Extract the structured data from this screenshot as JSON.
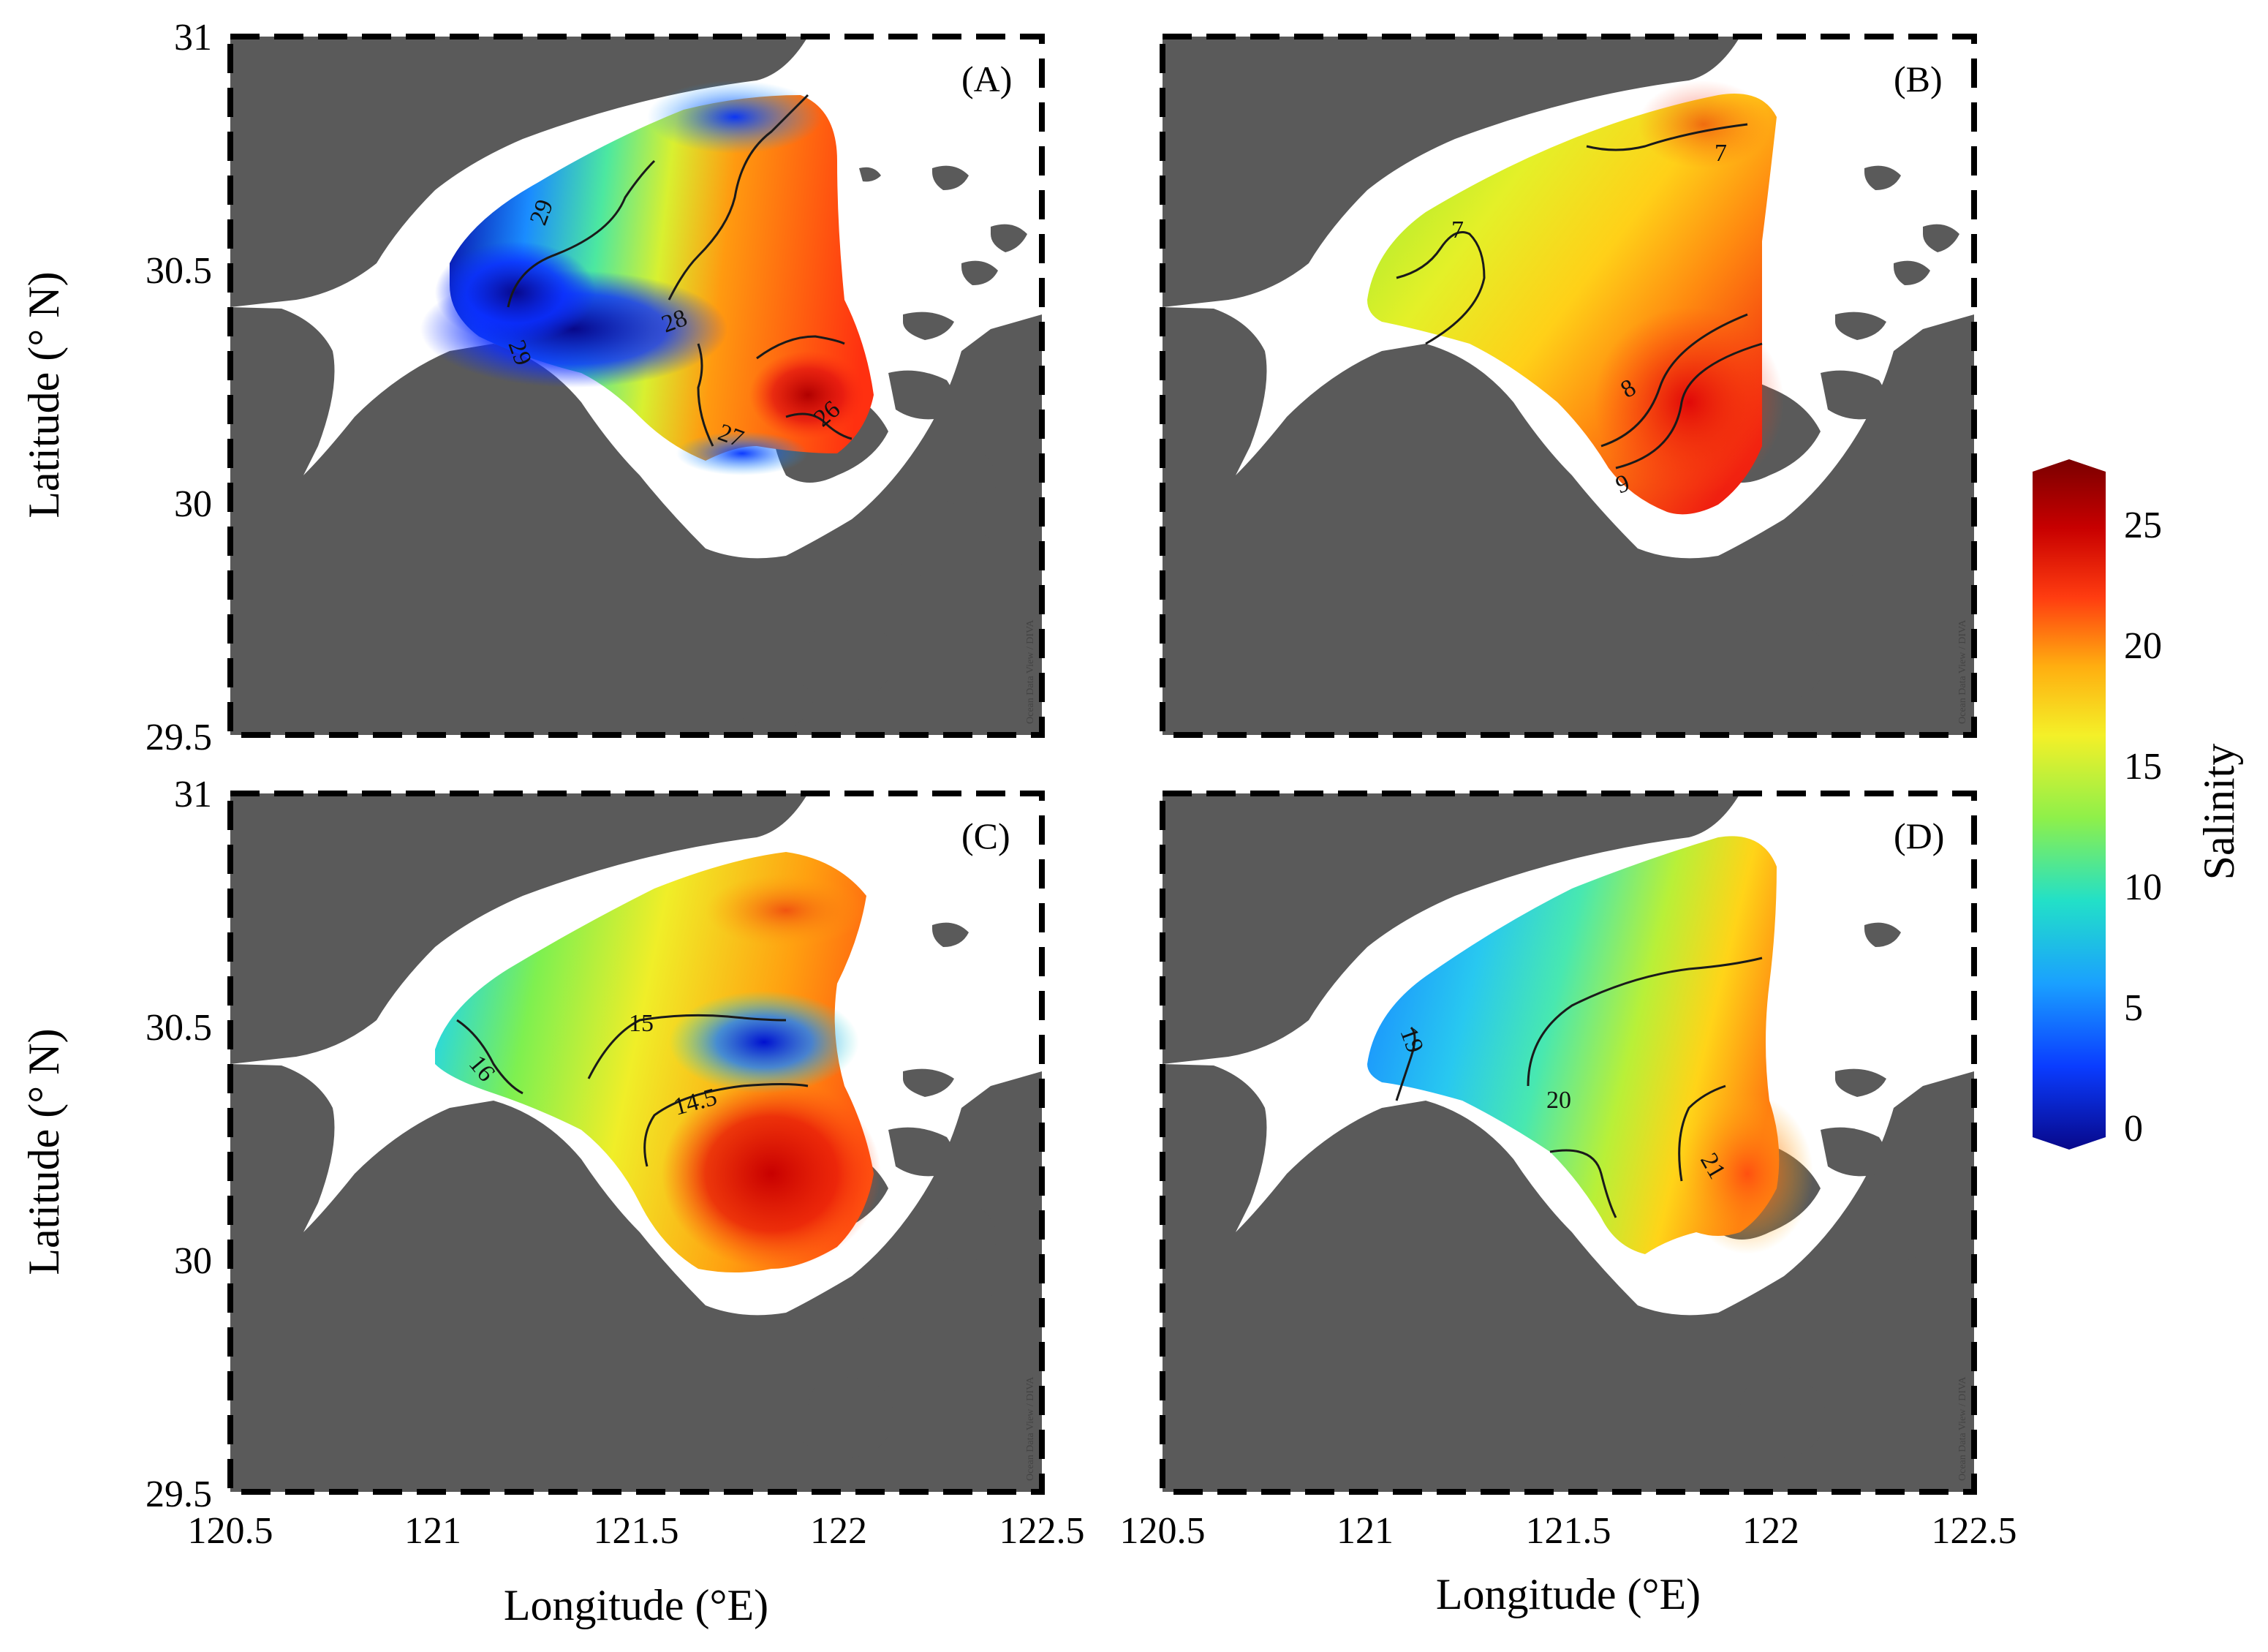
{
  "figure": {
    "x_axis_label": "Longitude (°E)",
    "y_axis_label": "Latitude (°  N)",
    "credit": "Ocean Data View / DIVA",
    "lon_ticks": [
      "120.5",
      "121",
      "121.5",
      "122",
      "122.5"
    ],
    "lat_ticks": [
      "31",
      "30.5",
      "30",
      "29.5"
    ],
    "lon_range": [
      120.5,
      122.5
    ],
    "lat_range": [
      29.5,
      31.0
    ]
  },
  "colors": {
    "land": "#5a5a5a",
    "water": "#ffffff",
    "contour": "#1a1a1a"
  },
  "colorbar": {
    "title": "Salinity",
    "ticks": [
      "0",
      "5",
      "10",
      "15",
      "20",
      "25"
    ],
    "range": [
      0,
      27.5
    ],
    "stops": [
      "#08088a",
      "#0a3cff",
      "#1aa0ff",
      "#22e0c8",
      "#8ef04a",
      "#f4f028",
      "#ffae10",
      "#ff3c10",
      "#c80000",
      "#7a0000"
    ]
  },
  "panels": [
    {
      "id": "A",
      "label": "(A)",
      "contours": [
        {
          "value": 29,
          "label": "29"
        },
        {
          "value": 28,
          "label": "28"
        },
        {
          "value": 27,
          "label": "27"
        },
        {
          "value": 29,
          "label": "29"
        },
        {
          "value": 26,
          "label": "26"
        }
      ]
    },
    {
      "id": "B",
      "label": "(B)",
      "contours": [
        {
          "value": 7,
          "label": "7"
        },
        {
          "value": 7,
          "label": "7"
        },
        {
          "value": 8,
          "label": "8"
        },
        {
          "value": 9,
          "label": "9"
        }
      ]
    },
    {
      "id": "C",
      "label": "(C)",
      "contours": [
        {
          "value": 16,
          "label": "16"
        },
        {
          "value": 15,
          "label": "15"
        },
        {
          "value": 14.5,
          "label": "14.5"
        }
      ]
    },
    {
      "id": "D",
      "label": "(D)",
      "contours": [
        {
          "value": 19,
          "label": "19"
        },
        {
          "value": 20,
          "label": "20"
        },
        {
          "value": 21,
          "label": "21"
        }
      ]
    }
  ]
}
